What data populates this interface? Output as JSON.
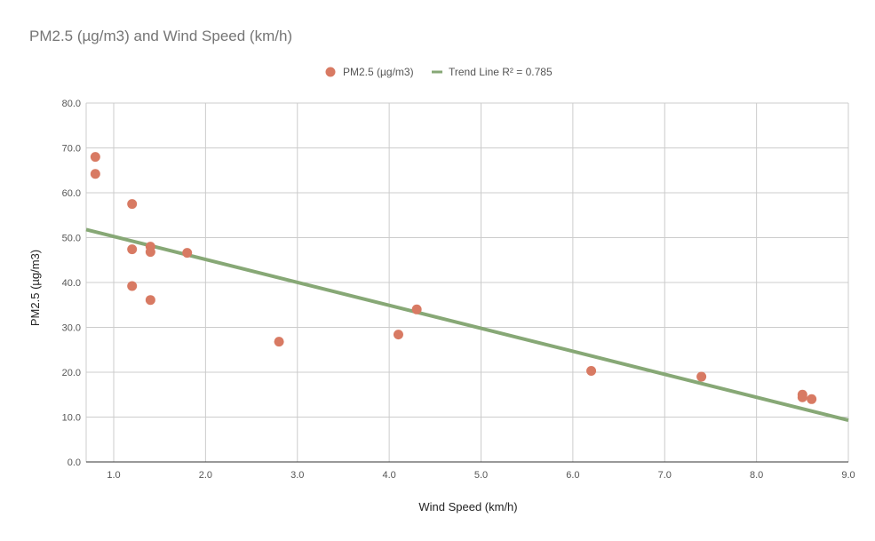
{
  "chart_data": {
    "type": "scatter",
    "title": "PM2.5 (µg/m3) and Wind Speed (km/h)",
    "xlabel": "Wind Speed (km/h)",
    "ylabel": "PM2.5 (µg/m3)",
    "xlim": [
      0.7,
      9.0
    ],
    "ylim": [
      0,
      80
    ],
    "x_ticks": [
      1.0,
      2.0,
      3.0,
      4.0,
      5.0,
      6.0,
      7.0,
      8.0,
      9.0
    ],
    "x_tick_labels": [
      "1.0",
      "2.0",
      "3.0",
      "4.0",
      "5.0",
      "6.0",
      "7.0",
      "8.0",
      "9.0"
    ],
    "y_ticks": [
      0,
      10,
      20,
      30,
      40,
      50,
      60,
      70,
      80
    ],
    "y_tick_labels": [
      "0.0",
      "10.0",
      "20.0",
      "30.0",
      "40.0",
      "50.0",
      "60.0",
      "70.0",
      "80.0"
    ],
    "grid": true,
    "legend_position": "top-center",
    "series": [
      {
        "name": "PM2.5 (µg/m3)",
        "color": "#d87a63",
        "points": [
          [
            0.8,
            68.0
          ],
          [
            0.8,
            64.2
          ],
          [
            1.2,
            57.5
          ],
          [
            1.2,
            47.4
          ],
          [
            1.2,
            39.2
          ],
          [
            1.4,
            48.0
          ],
          [
            1.4,
            46.8
          ],
          [
            1.4,
            36.1
          ],
          [
            1.8,
            46.6
          ],
          [
            2.8,
            26.8
          ],
          [
            4.1,
            28.4
          ],
          [
            4.3,
            34.0
          ],
          [
            6.2,
            20.3
          ],
          [
            7.4,
            19.0
          ],
          [
            8.5,
            15.0
          ],
          [
            8.5,
            14.4
          ],
          [
            8.6,
            14.0
          ]
        ]
      }
    ],
    "trendline": {
      "name": "Trend Line R² = 0.785",
      "color": "#87a876",
      "start": [
        0.7,
        51.8
      ],
      "end": [
        9.0,
        9.3
      ]
    }
  }
}
